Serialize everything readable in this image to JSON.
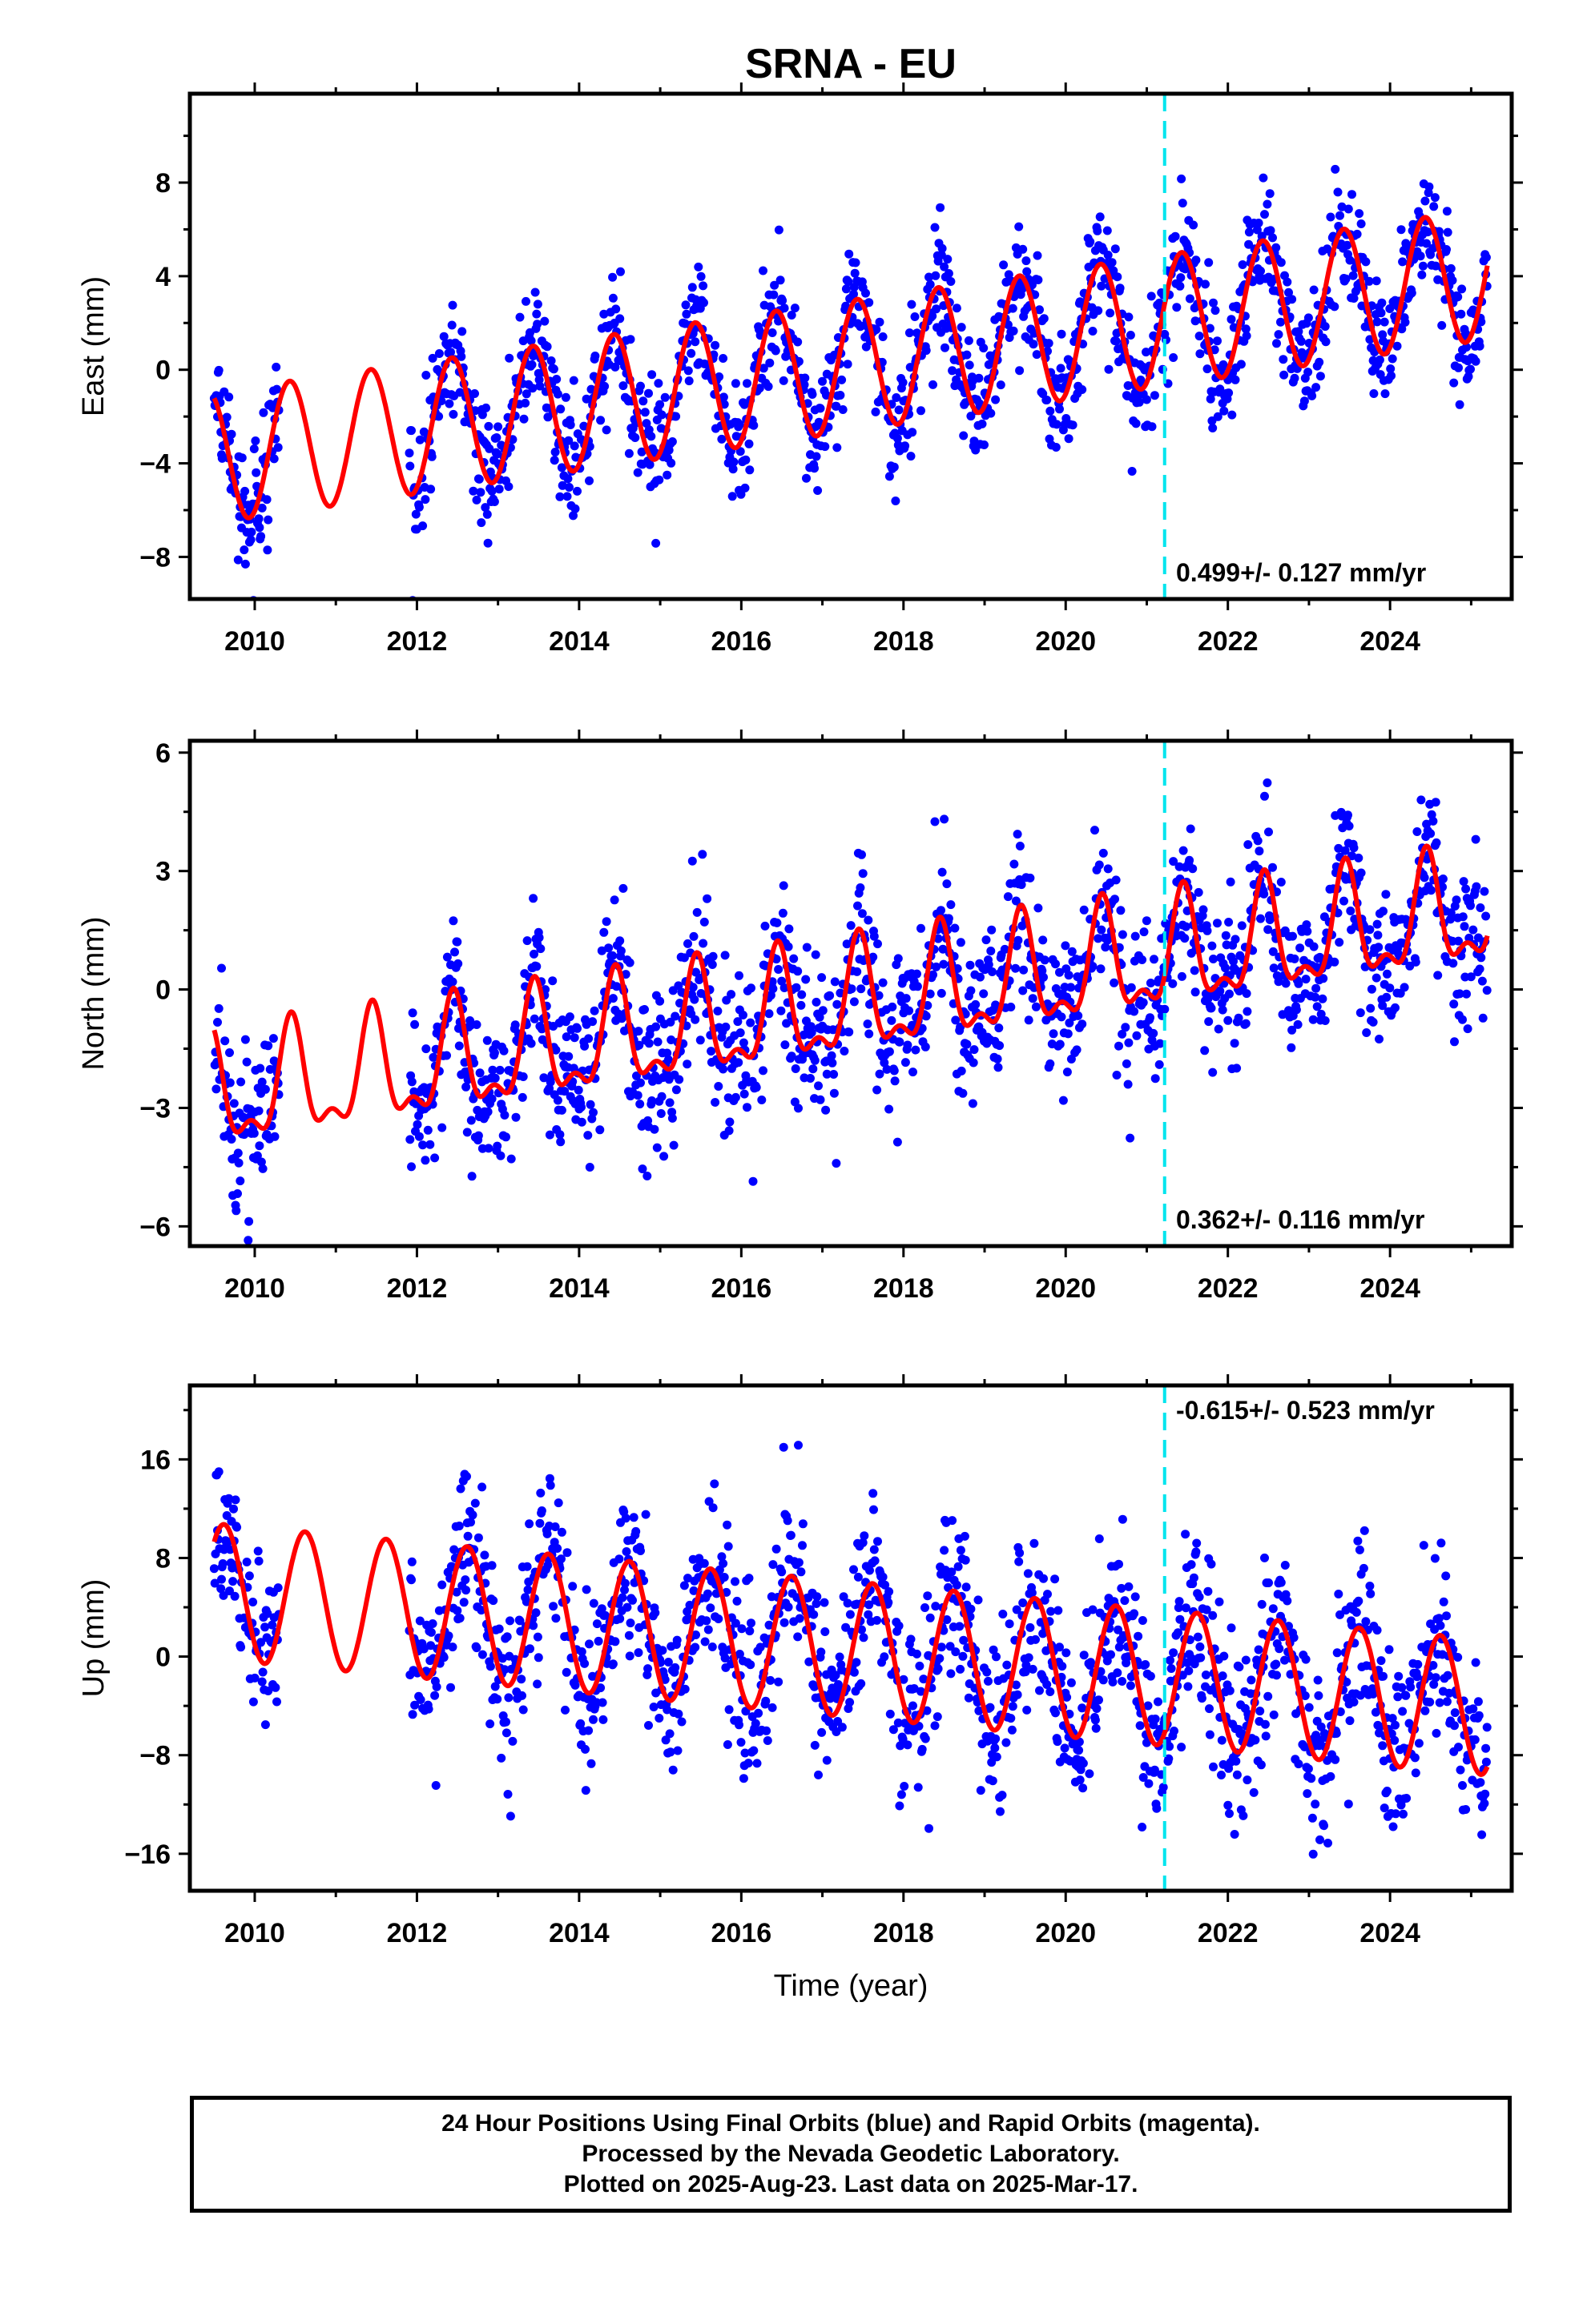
{
  "chart_data": [
    {
      "type": "scatter",
      "title": "SRNA - EU",
      "ylabel": "East (mm)",
      "xlabel": "",
      "xlim": [
        2009.2,
        2025.5
      ],
      "ylim": [
        -9.8,
        11.8
      ],
      "x_ticks": [
        "2010",
        "2012",
        "2014",
        "2016",
        "2018",
        "2020",
        "2022",
        "2024"
      ],
      "y_ticks": [
        "8",
        "4",
        "0",
        "−4",
        "−8"
      ],
      "rate_text": "0.499+/- 0.127 mm/yr",
      "rate_position": "bottom-right",
      "data_start": 2009.5,
      "data_end": 2025.2,
      "data_gap": [
        2010.3,
        2011.9
      ],
      "seasonal_model": {
        "intercept_2010": -3.5,
        "trend_mm_per_yr": 0.5,
        "annual_amplitude": 2.8,
        "peak_phase_year_fraction": 0.43
      },
      "noise_mm": 1.3,
      "antenna_change_year": 2021.22,
      "series": [
        {
          "name": "Final Orbits (blue)",
          "color": "#0000ff"
        },
        {
          "name": "Model fit",
          "color": "#ff0000"
        }
      ]
    },
    {
      "type": "scatter",
      "title": "",
      "ylabel": "North (mm)",
      "xlabel": "",
      "xlim": [
        2009.2,
        2025.5
      ],
      "ylim": [
        -6.5,
        6.3
      ],
      "x_ticks": [
        "2010",
        "2012",
        "2014",
        "2016",
        "2018",
        "2020",
        "2022",
        "2024"
      ],
      "y_ticks": [
        "6",
        "3",
        "0",
        "−3",
        "−6"
      ],
      "rate_text": "0.362+/- 0.116 mm/yr",
      "rate_position": "bottom-right",
      "data_start": 2009.5,
      "data_end": 2025.2,
      "data_gap": [
        2010.3,
        2011.9
      ],
      "seasonal_model": {
        "intercept_2010": -2.6,
        "trend_mm_per_yr": 0.3,
        "annual_amplitude": 1.3,
        "semiannual_amplitude": 0.6,
        "peak_phase_year_fraction": 0.45
      },
      "noise_mm": 1.0,
      "antenna_change_year": 2021.22,
      "series": [
        {
          "name": "Final Orbits (blue)",
          "color": "#0000ff"
        },
        {
          "name": "Model fit",
          "color": "#ff0000"
        }
      ]
    },
    {
      "type": "scatter",
      "title": "",
      "ylabel": "Up (mm)",
      "xlabel": "Time (year)",
      "xlim": [
        2009.2,
        2025.5
      ],
      "ylim": [
        -19,
        22
      ],
      "x_ticks": [
        "2010",
        "2012",
        "2014",
        "2016",
        "2018",
        "2020",
        "2022",
        "2024"
      ],
      "y_ticks": [
        "16",
        "8",
        "0",
        "−8",
        "−16"
      ],
      "rate_text": "-0.615+/- 0.523 mm/yr",
      "rate_position": "top-right",
      "data_start": 2009.5,
      "data_end": 2025.2,
      "data_gap": [
        2010.3,
        2011.9
      ],
      "seasonal_model": {
        "intercept_2010": 5.0,
        "trend_mm_per_yr": -0.6,
        "annual_amplitude": 5.5,
        "peak_phase_year_fraction": 0.62
      },
      "noise_mm": 3.5,
      "antenna_change_year": 2021.22,
      "series": [
        {
          "name": "Final Orbits (blue)",
          "color": "#0000ff"
        },
        {
          "name": "Model fit",
          "color": "#ff0000"
        }
      ]
    }
  ],
  "caption": {
    "line1": "24 Hour Positions Using Final Orbits (blue) and Rapid Orbits (magenta).",
    "line2": "Processed by the Nevada Geodetic Laboratory.",
    "line3": "Plotted on 2025-Aug-23. Last data on 2025-Mar-17."
  },
  "colors": {
    "points": "#0000ff",
    "fit": "#ff0000",
    "marker_line": "#00e5ee",
    "frame": "#000000"
  }
}
